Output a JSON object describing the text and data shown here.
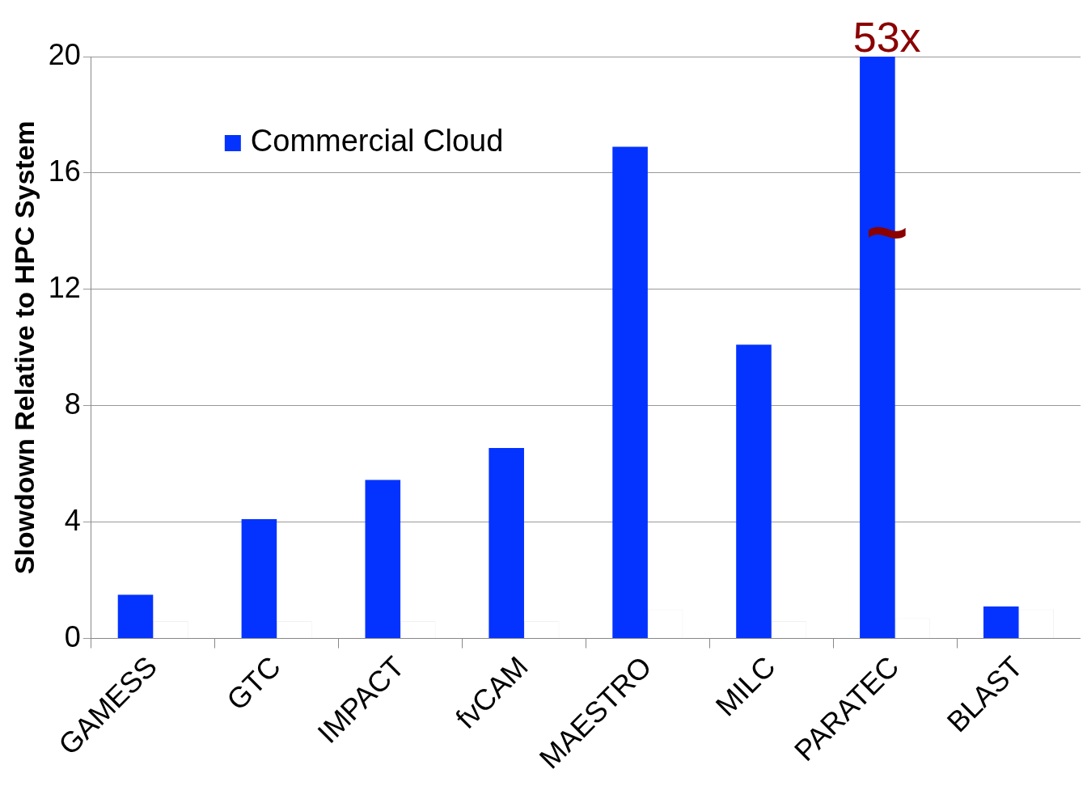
{
  "chart_data": {
    "type": "bar",
    "ylabel": "Slowdown Relative to HPC System",
    "categories": [
      "GAMESS",
      "GTC",
      "IMPACT",
      "fvCAM",
      "MAESTRO",
      "MILC",
      "PARATEC",
      "BLAST"
    ],
    "series": [
      {
        "name": "Commercial Cloud",
        "color": "#0433ff",
        "values": [
          1.5,
          4.1,
          5.45,
          6.55,
          16.9,
          10.1,
          20,
          1.1
        ]
      },
      {
        "color": "#ffffff",
        "values": [
          0.6,
          0.6,
          0.6,
          0.6,
          1.0,
          0.6,
          0.7,
          1.0
        ]
      }
    ],
    "ylim": [
      0,
      20
    ],
    "yticks": [
      0,
      4,
      8,
      12,
      16,
      20
    ],
    "grid": "y",
    "legend": "top left",
    "annotations": [
      {
        "text": "53x",
        "x": "PARATEC",
        "y": 20
      },
      {
        "text": "~",
        "x": "PARATEC",
        "y": 13.8
      }
    ]
  }
}
